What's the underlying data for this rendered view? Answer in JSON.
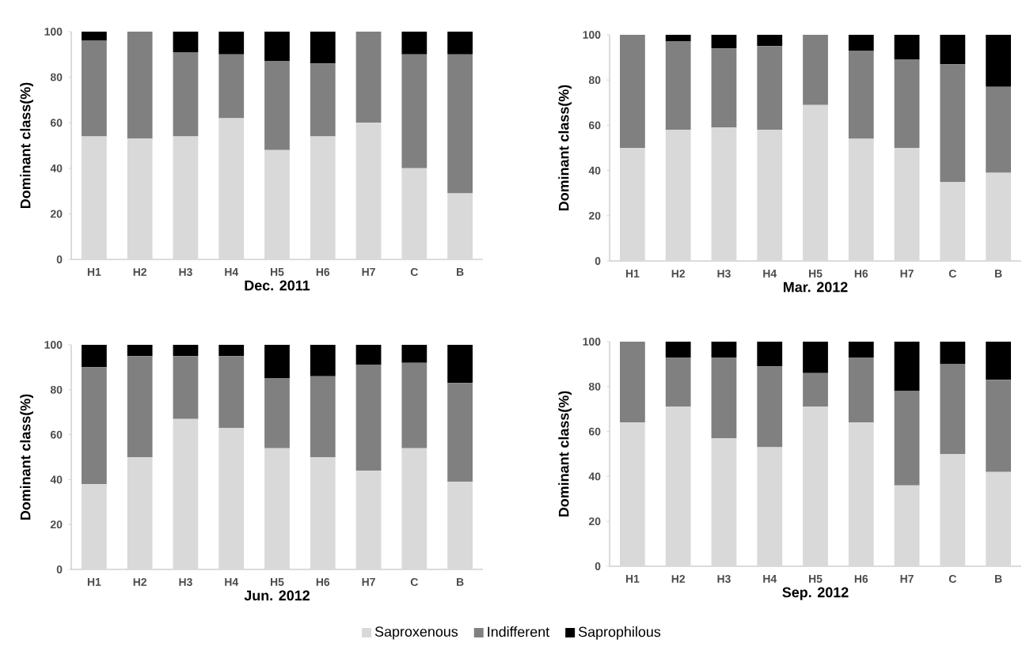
{
  "chart_data": [
    {
      "type": "bar",
      "stacked": true,
      "xlabel": "Dec. 2011",
      "ylabel": "Dominant class(%)",
      "categories": [
        "H1",
        "H2",
        "H3",
        "H4",
        "H5",
        "H6",
        "H7",
        "C",
        "B"
      ],
      "ylim": [
        0,
        100
      ],
      "yticks": [
        0,
        20,
        40,
        60,
        80,
        100
      ],
      "legend": "bottom",
      "series": [
        {
          "name": "Saproxenous",
          "color": "#d9d9d9",
          "values": [
            54,
            53,
            54,
            62,
            48,
            54,
            60,
            40,
            29
          ]
        },
        {
          "name": "Indifferent",
          "color": "#808080",
          "values": [
            42,
            47,
            37,
            28,
            39,
            32,
            40,
            50,
            61
          ]
        },
        {
          "name": "Saprophilous",
          "color": "#000000",
          "values": [
            4,
            0,
            9,
            10,
            13,
            14,
            0,
            10,
            10
          ]
        }
      ]
    },
    {
      "type": "bar",
      "stacked": true,
      "xlabel": "Mar. 2012",
      "ylabel": "Dominant class(%)",
      "categories": [
        "H1",
        "H2",
        "H3",
        "H4",
        "H5",
        "H6",
        "H7",
        "C",
        "B"
      ],
      "ylim": [
        0,
        100
      ],
      "yticks": [
        0,
        20,
        40,
        60,
        80,
        100
      ],
      "series": [
        {
          "color": "#d9d9d9",
          "values": [
            50,
            58,
            59,
            58,
            69,
            54,
            50,
            35,
            39
          ]
        },
        {
          "color": "#808080",
          "values": [
            50,
            39,
            35,
            37,
            31,
            39,
            39,
            52,
            38
          ]
        },
        {
          "color": "#000000",
          "values": [
            0,
            3,
            6,
            5,
            0,
            7,
            11,
            13,
            23
          ]
        }
      ]
    },
    {
      "type": "bar",
      "stacked": true,
      "xlabel": "Jun. 2012",
      "ylabel": "Dominant class(%)",
      "categories": [
        "H1",
        "H2",
        "H3",
        "H4",
        "H5",
        "H6",
        "H7",
        "C",
        "B"
      ],
      "ylim": [
        0,
        100
      ],
      "yticks": [
        0,
        20,
        40,
        60,
        80,
        100
      ],
      "series": [
        {
          "color": "#d9d9d9",
          "values": [
            38,
            50,
            67,
            63,
            54,
            50,
            44,
            54,
            39
          ]
        },
        {
          "color": "#808080",
          "values": [
            52,
            45,
            28,
            32,
            31,
            36,
            47,
            38,
            44
          ]
        },
        {
          "color": "#000000",
          "values": [
            10,
            5,
            5,
            5,
            15,
            14,
            9,
            8,
            17
          ]
        }
      ]
    },
    {
      "type": "bar",
      "stacked": true,
      "xlabel": "Sep. 2012",
      "ylabel": "Dominant class(%)",
      "categories": [
        "H1",
        "H2",
        "H3",
        "H4",
        "H5",
        "H6",
        "H7",
        "C",
        "B"
      ],
      "ylim": [
        0,
        100
      ],
      "yticks": [
        0,
        20,
        40,
        60,
        80,
        100
      ],
      "series": [
        {
          "color": "#d9d9d9",
          "values": [
            64,
            71,
            57,
            53,
            71,
            64,
            36,
            50,
            42
          ]
        },
        {
          "color": "#808080",
          "values": [
            36,
            22,
            36,
            36,
            15,
            29,
            42,
            40,
            41
          ]
        },
        {
          "color": "#000000",
          "values": [
            0,
            7,
            7,
            11,
            14,
            7,
            22,
            10,
            17
          ]
        }
      ]
    }
  ]
}
